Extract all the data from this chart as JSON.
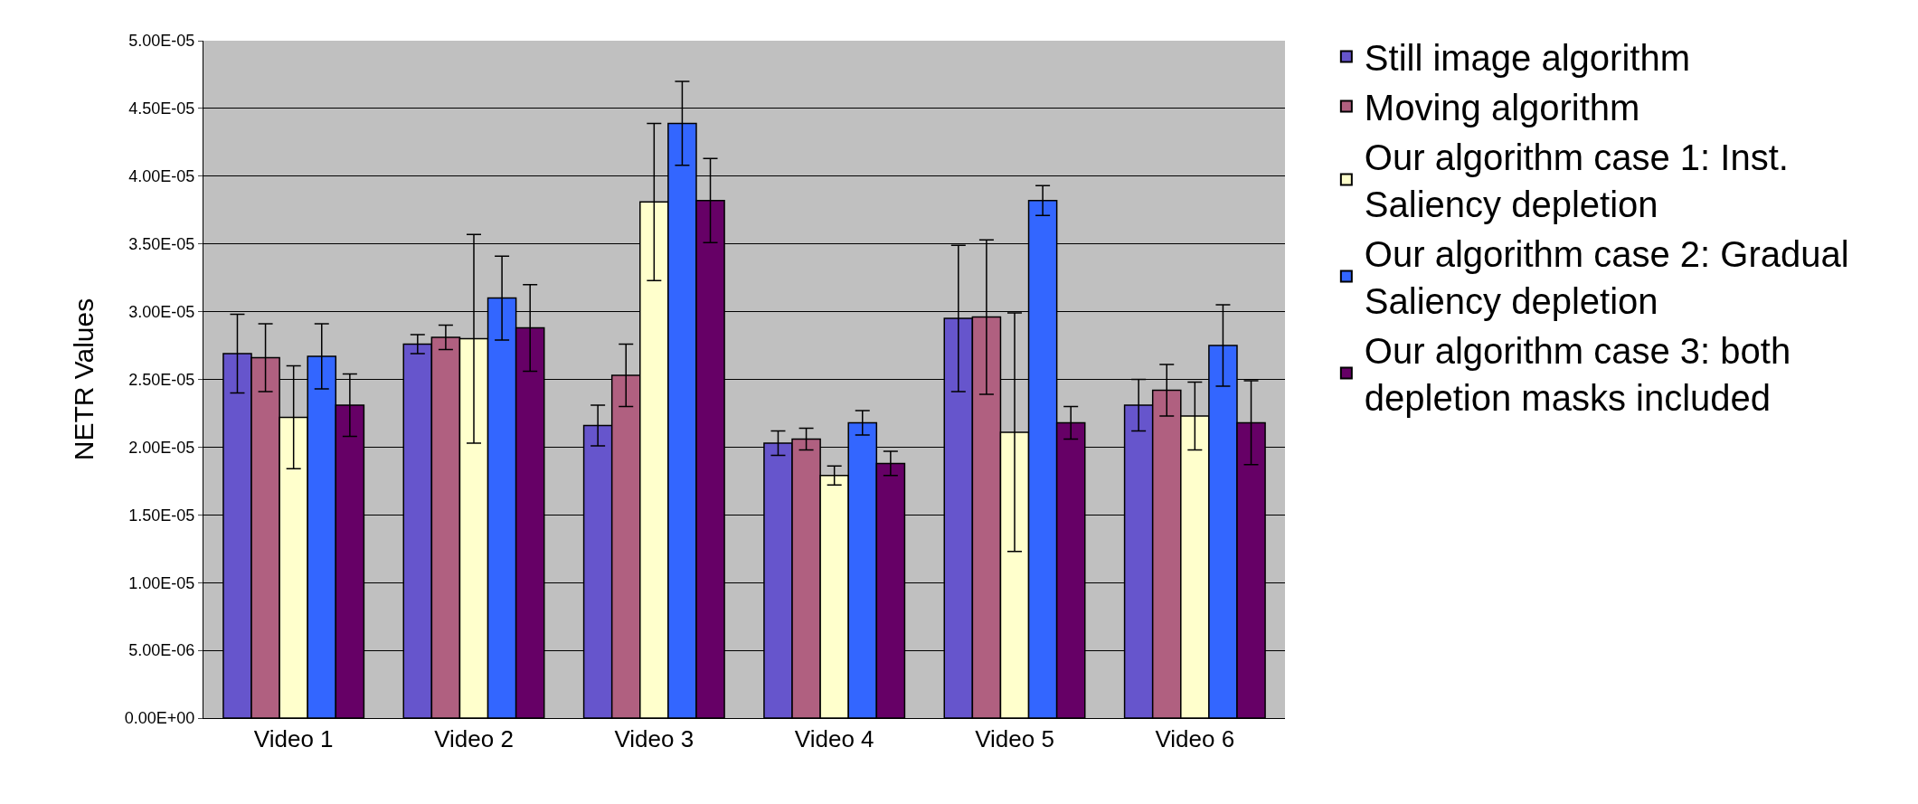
{
  "chart_data": {
    "type": "bar",
    "ylabel": "NETR Values",
    "categories": [
      "Video 1",
      "Video 2",
      "Video 3",
      "Video 4",
      "Video 5",
      "Video 6"
    ],
    "series": [
      {
        "name": "Still image algorithm",
        "color": "#6655cc",
        "values": [
          2.69e-05,
          2.76e-05,
          2.16e-05,
          2.03e-05,
          2.95e-05,
          2.31e-05
        ],
        "errors": [
          2.9e-06,
          7e-07,
          1.5e-06,
          9e-07,
          5.4e-06,
          1.9e-06
        ]
      },
      {
        "name": "Moving algorithm",
        "color": "#b06080",
        "values": [
          2.66e-05,
          2.81e-05,
          2.53e-05,
          2.06e-05,
          2.96e-05,
          2.42e-05
        ],
        "errors": [
          2.5e-06,
          9e-07,
          2.3e-06,
          8e-07,
          5.7e-06,
          1.9e-06
        ]
      },
      {
        "name": "Our algorithm case 1: Inst. Saliency depletion",
        "color": "#ffffcc",
        "values": [
          2.22e-05,
          2.8e-05,
          3.81e-05,
          1.79e-05,
          2.11e-05,
          2.23e-05
        ],
        "errors": [
          3.8e-06,
          7.7e-06,
          5.8e-06,
          7e-07,
          8.8e-06,
          2.5e-06
        ]
      },
      {
        "name": "Our algorithm case 2: Gradual Saliency depletion",
        "color": "#3366ff",
        "values": [
          2.67e-05,
          3.1e-05,
          4.39e-05,
          2.18e-05,
          3.82e-05,
          2.75e-05
        ],
        "errors": [
          2.4e-06,
          3.1e-06,
          3.1e-06,
          9e-07,
          1.1e-06,
          3e-06
        ]
      },
      {
        "name": "Our algorithm case 3: both depletion masks included",
        "color": "#660066",
        "values": [
          2.31e-05,
          2.88e-05,
          3.82e-05,
          1.88e-05,
          2.18e-05,
          2.18e-05
        ],
        "errors": [
          2.3e-06,
          3.2e-06,
          3.1e-06,
          9e-07,
          1.2e-06,
          3.1e-06
        ]
      }
    ],
    "ylim": [
      0,
      5e-05
    ],
    "yticks": [
      {
        "value": 0,
        "label": "0.00E+00"
      },
      {
        "value": 5e-06,
        "label": "5.00E-06"
      },
      {
        "value": 1e-05,
        "label": "1.00E-05"
      },
      {
        "value": 1.5e-05,
        "label": "1.50E-05"
      },
      {
        "value": 2e-05,
        "label": "2.00E-05"
      },
      {
        "value": 2.5e-05,
        "label": "2.50E-05"
      },
      {
        "value": 3e-05,
        "label": "3.00E-05"
      },
      {
        "value": 3.5e-05,
        "label": "3.50E-05"
      },
      {
        "value": 4e-05,
        "label": "4.00E-05"
      },
      {
        "value": 4.5e-05,
        "label": "4.50E-05"
      },
      {
        "value": 5e-05,
        "label": "5.00E-05"
      }
    ],
    "grid": "y",
    "legend": "right"
  }
}
